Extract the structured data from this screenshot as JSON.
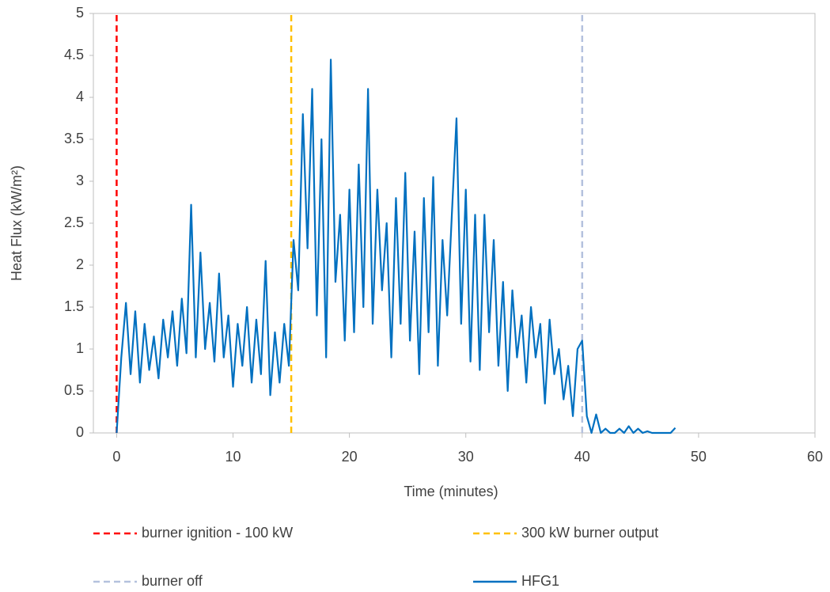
{
  "chart_data": {
    "type": "line",
    "x_label": "Time (minutes)",
    "y_label": "Heat Flux (kW/m²)",
    "xlim": [
      -2,
      60
    ],
    "xticks": [
      0,
      10,
      20,
      30,
      40,
      50,
      60
    ],
    "ylim": [
      0,
      5
    ],
    "yticks": [
      0,
      0.5,
      1,
      1.5,
      2,
      2.5,
      3,
      3.5,
      4,
      4.5,
      5
    ],
    "series": [
      {
        "name": "burner ignition - 100 kW",
        "color": "#ff0000",
        "dash": true,
        "x": [
          0,
          0
        ],
        "values": [
          0,
          5
        ]
      },
      {
        "name": "300 kW burner output",
        "color": "#ffc000",
        "dash": true,
        "x": [
          15,
          15
        ],
        "values": [
          0,
          5
        ]
      },
      {
        "name": "burner off",
        "color": "#b4c1de",
        "dash": true,
        "x": [
          40,
          40
        ],
        "values": [
          0,
          5
        ]
      },
      {
        "name": "HFG1",
        "color": "#0070c0",
        "dash": false,
        "x": [
          0,
          0.4,
          0.8,
          1.2,
          1.6,
          2,
          2.4,
          2.8,
          3.2,
          3.6,
          4,
          4.4,
          4.8,
          5.2,
          5.6,
          6,
          6.4,
          6.8,
          7.2,
          7.6,
          8,
          8.4,
          8.8,
          9.2,
          9.6,
          10,
          10.4,
          10.8,
          11.2,
          11.6,
          12,
          12.4,
          12.8,
          13.2,
          13.6,
          14,
          14.4,
          14.8,
          15.2,
          15.6,
          16,
          16.4,
          16.8,
          17.2,
          17.6,
          18,
          18.4,
          18.8,
          19.2,
          19.6,
          20,
          20.4,
          20.8,
          21.2,
          21.6,
          22,
          22.4,
          22.8,
          23.2,
          23.6,
          24,
          24.4,
          24.8,
          25.2,
          25.6,
          26,
          26.4,
          26.8,
          27.2,
          27.6,
          28,
          28.4,
          28.8,
          29.2,
          29.6,
          30,
          30.4,
          30.8,
          31.2,
          31.6,
          32,
          32.4,
          32.8,
          33.2,
          33.6,
          34,
          34.4,
          34.8,
          35.2,
          35.6,
          36,
          36.4,
          36.8,
          37.2,
          37.6,
          38,
          38.4,
          38.8,
          39.2,
          39.6,
          40,
          40.4,
          40.8,
          41.2,
          41.6,
          42,
          42.4,
          42.8,
          43.2,
          43.6,
          44,
          44.4,
          44.8,
          45.2,
          45.6,
          46,
          46.4,
          46.8,
          47.2,
          47.6,
          48
        ],
        "values": [
          0,
          0.9,
          1.55,
          0.7,
          1.45,
          0.6,
          1.3,
          0.75,
          1.15,
          0.65,
          1.35,
          0.9,
          1.45,
          0.8,
          1.6,
          0.95,
          2.72,
          0.9,
          2.15,
          1,
          1.55,
          0.85,
          1.9,
          0.9,
          1.4,
          0.55,
          1.3,
          0.8,
          1.5,
          0.6,
          1.35,
          0.7,
          2.05,
          0.45,
          1.2,
          0.6,
          1.3,
          0.8,
          2.3,
          1.7,
          3.8,
          2.2,
          4.1,
          1.4,
          3.5,
          0.9,
          4.45,
          1.8,
          2.6,
          1.1,
          2.9,
          1.2,
          3.2,
          1.5,
          4.1,
          1.3,
          2.9,
          1.7,
          2.5,
          0.9,
          2.8,
          1.3,
          3.1,
          1.1,
          2.4,
          0.7,
          2.8,
          1.2,
          3.05,
          0.8,
          2.3,
          1.4,
          2.6,
          3.75,
          1.3,
          2.9,
          0.85,
          2.6,
          0.75,
          2.6,
          1.2,
          2.3,
          0.8,
          1.8,
          0.5,
          1.7,
          0.9,
          1.4,
          0.6,
          1.5,
          0.9,
          1.3,
          0.35,
          1.35,
          0.7,
          1,
          0.4,
          0.8,
          0.2,
          1,
          1.1,
          0.2,
          0,
          0.22,
          0,
          0.05,
          0,
          0,
          0.05,
          0,
          0.08,
          0,
          0.05,
          0,
          0.02,
          0,
          0,
          0,
          0,
          0,
          0.06
        ]
      }
    ]
  }
}
